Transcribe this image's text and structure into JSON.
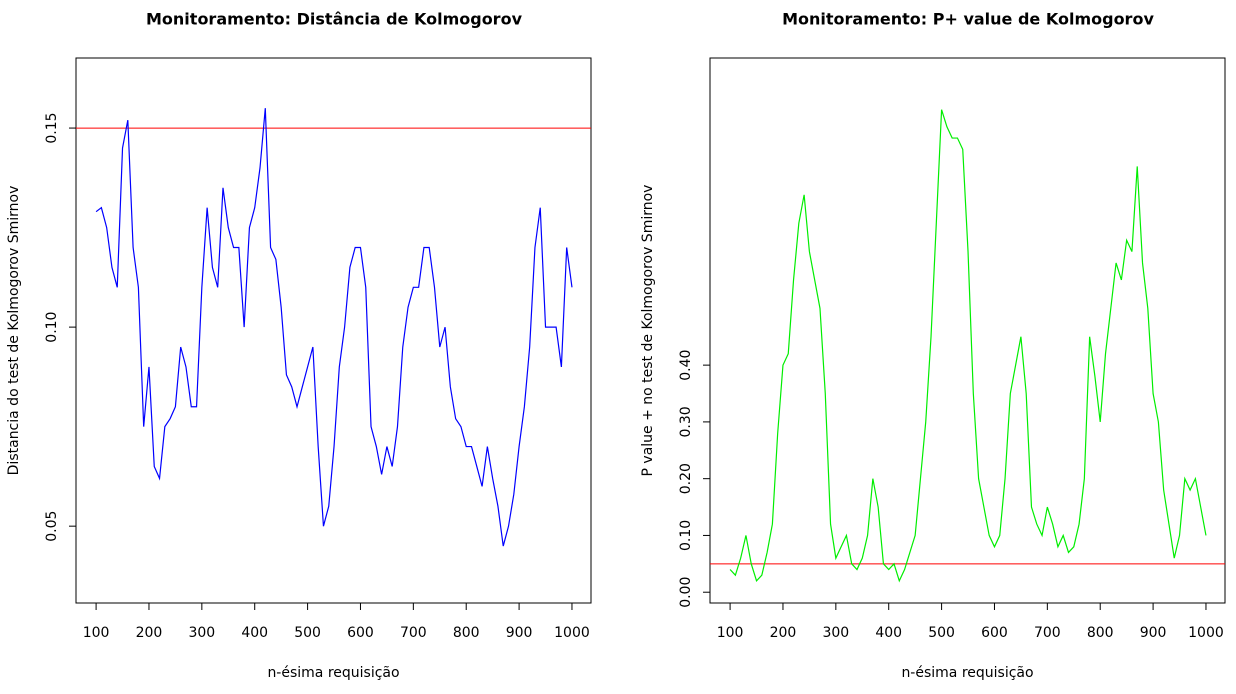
{
  "chart_data": [
    {
      "type": "line",
      "title": "Monitoramento: Distância de Kolmogorov",
      "xlabel": "n-ésima requisição",
      "ylabel": "Distancia do test de Kolmogorov Smirnov",
      "x": [
        100,
        110,
        120,
        130,
        140,
        150,
        160,
        170,
        180,
        190,
        200,
        210,
        220,
        230,
        240,
        250,
        260,
        270,
        280,
        290,
        300,
        310,
        320,
        330,
        340,
        350,
        360,
        370,
        380,
        390,
        400,
        410,
        420,
        430,
        440,
        450,
        460,
        470,
        480,
        490,
        500,
        510,
        520,
        530,
        540,
        550,
        560,
        570,
        580,
        590,
        600,
        610,
        620,
        630,
        640,
        650,
        660,
        670,
        680,
        690,
        700,
        710,
        720,
        730,
        740,
        750,
        760,
        770,
        780,
        790,
        800,
        810,
        820,
        830,
        840,
        850,
        860,
        870,
        880,
        890,
        900,
        910,
        920,
        930,
        940,
        950,
        960,
        970,
        980,
        990,
        1000
      ],
      "values": [
        0.129,
        0.13,
        0.125,
        0.115,
        0.11,
        0.145,
        0.152,
        0.12,
        0.11,
        0.075,
        0.09,
        0.065,
        0.062,
        0.075,
        0.077,
        0.08,
        0.095,
        0.09,
        0.08,
        0.08,
        0.11,
        0.13,
        0.115,
        0.11,
        0.135,
        0.125,
        0.12,
        0.12,
        0.1,
        0.125,
        0.13,
        0.14,
        0.155,
        0.12,
        0.117,
        0.105,
        0.088,
        0.085,
        0.08,
        0.085,
        0.09,
        0.095,
        0.07,
        0.05,
        0.055,
        0.07,
        0.09,
        0.1,
        0.115,
        0.12,
        0.12,
        0.11,
        0.075,
        0.07,
        0.063,
        0.07,
        0.065,
        0.075,
        0.095,
        0.105,
        0.11,
        0.11,
        0.12,
        0.12,
        0.11,
        0.095,
        0.1,
        0.085,
        0.077,
        0.075,
        0.07,
        0.07,
        0.065,
        0.06,
        0.07,
        0.062,
        0.055,
        0.045,
        0.05,
        0.058,
        0.07,
        0.08,
        0.095,
        0.12,
        0.13,
        0.1,
        0.1,
        0.1,
        0.09,
        0.12,
        0.11
      ],
      "color": "#0000ff",
      "hline": {
        "value": 0.15,
        "color": "#ff0000"
      },
      "xlim": [
        62,
        1036
      ],
      "xticks": [
        100,
        200,
        300,
        400,
        500,
        600,
        700,
        800,
        900,
        1000
      ],
      "ylim": [
        0.0307,
        0.1676
      ],
      "yticks": [
        0.05,
        {
          "value": 0.1,
          "label": "0.10"
        },
        0.15
      ]
    },
    {
      "type": "line",
      "title": "Monitoramento: P+ value de Kolmogorov",
      "xlabel": "n-ésima requisição",
      "ylabel": "P value + no test de Kolmogorov Smirnov",
      "x": [
        100,
        110,
        120,
        130,
        140,
        150,
        160,
        170,
        180,
        190,
        200,
        210,
        220,
        230,
        240,
        250,
        260,
        270,
        280,
        290,
        300,
        310,
        320,
        330,
        340,
        350,
        360,
        370,
        380,
        390,
        400,
        410,
        420,
        430,
        440,
        450,
        460,
        470,
        480,
        490,
        500,
        510,
        520,
        530,
        540,
        550,
        560,
        570,
        580,
        590,
        600,
        610,
        620,
        630,
        640,
        650,
        660,
        670,
        680,
        690,
        700,
        710,
        720,
        730,
        740,
        750,
        760,
        770,
        780,
        790,
        800,
        810,
        820,
        830,
        840,
        850,
        860,
        870,
        880,
        890,
        900,
        910,
        920,
        930,
        940,
        950,
        960,
        970,
        980,
        990,
        1000
      ],
      "values": [
        0.04,
        0.03,
        0.06,
        0.1,
        0.05,
        0.02,
        0.03,
        0.07,
        0.12,
        0.28,
        0.4,
        0.42,
        0.55,
        0.65,
        0.7,
        0.6,
        0.55,
        0.5,
        0.35,
        0.12,
        0.06,
        0.08,
        0.1,
        0.05,
        0.04,
        0.06,
        0.1,
        0.2,
        0.15,
        0.05,
        0.04,
        0.05,
        0.02,
        0.04,
        0.07,
        0.1,
        0.2,
        0.3,
        0.45,
        0.65,
        0.85,
        0.82,
        0.8,
        0.8,
        0.78,
        0.6,
        0.35,
        0.2,
        0.15,
        0.1,
        0.08,
        0.1,
        0.2,
        0.35,
        0.4,
        0.45,
        0.35,
        0.15,
        0.12,
        0.1,
        0.15,
        0.12,
        0.08,
        0.1,
        0.07,
        0.08,
        0.12,
        0.2,
        0.45,
        0.38,
        0.3,
        0.42,
        0.5,
        0.58,
        0.55,
        0.62,
        0.6,
        0.75,
        0.58,
        0.5,
        0.35,
        0.3,
        0.18,
        0.12,
        0.06,
        0.1,
        0.2,
        0.18,
        0.2,
        0.15,
        0.1
      ],
      "color": "#00ee00",
      "hline": {
        "value": 0.05,
        "color": "#ff0000"
      },
      "xlim": [
        62,
        1036
      ],
      "xticks": [
        100,
        200,
        300,
        400,
        500,
        600,
        700,
        800,
        900,
        1000
      ],
      "ylim": [
        -0.019,
        0.941
      ],
      "yticks": [
        {
          "value": 0,
          "label": "0.00"
        },
        {
          "value": 0.1,
          "label": "0.10"
        },
        {
          "value": 0.2,
          "label": "0.20"
        },
        {
          "value": 0.3,
          "label": "0.30"
        },
        {
          "value": 0.4,
          "label": "0.40"
        }
      ]
    }
  ]
}
